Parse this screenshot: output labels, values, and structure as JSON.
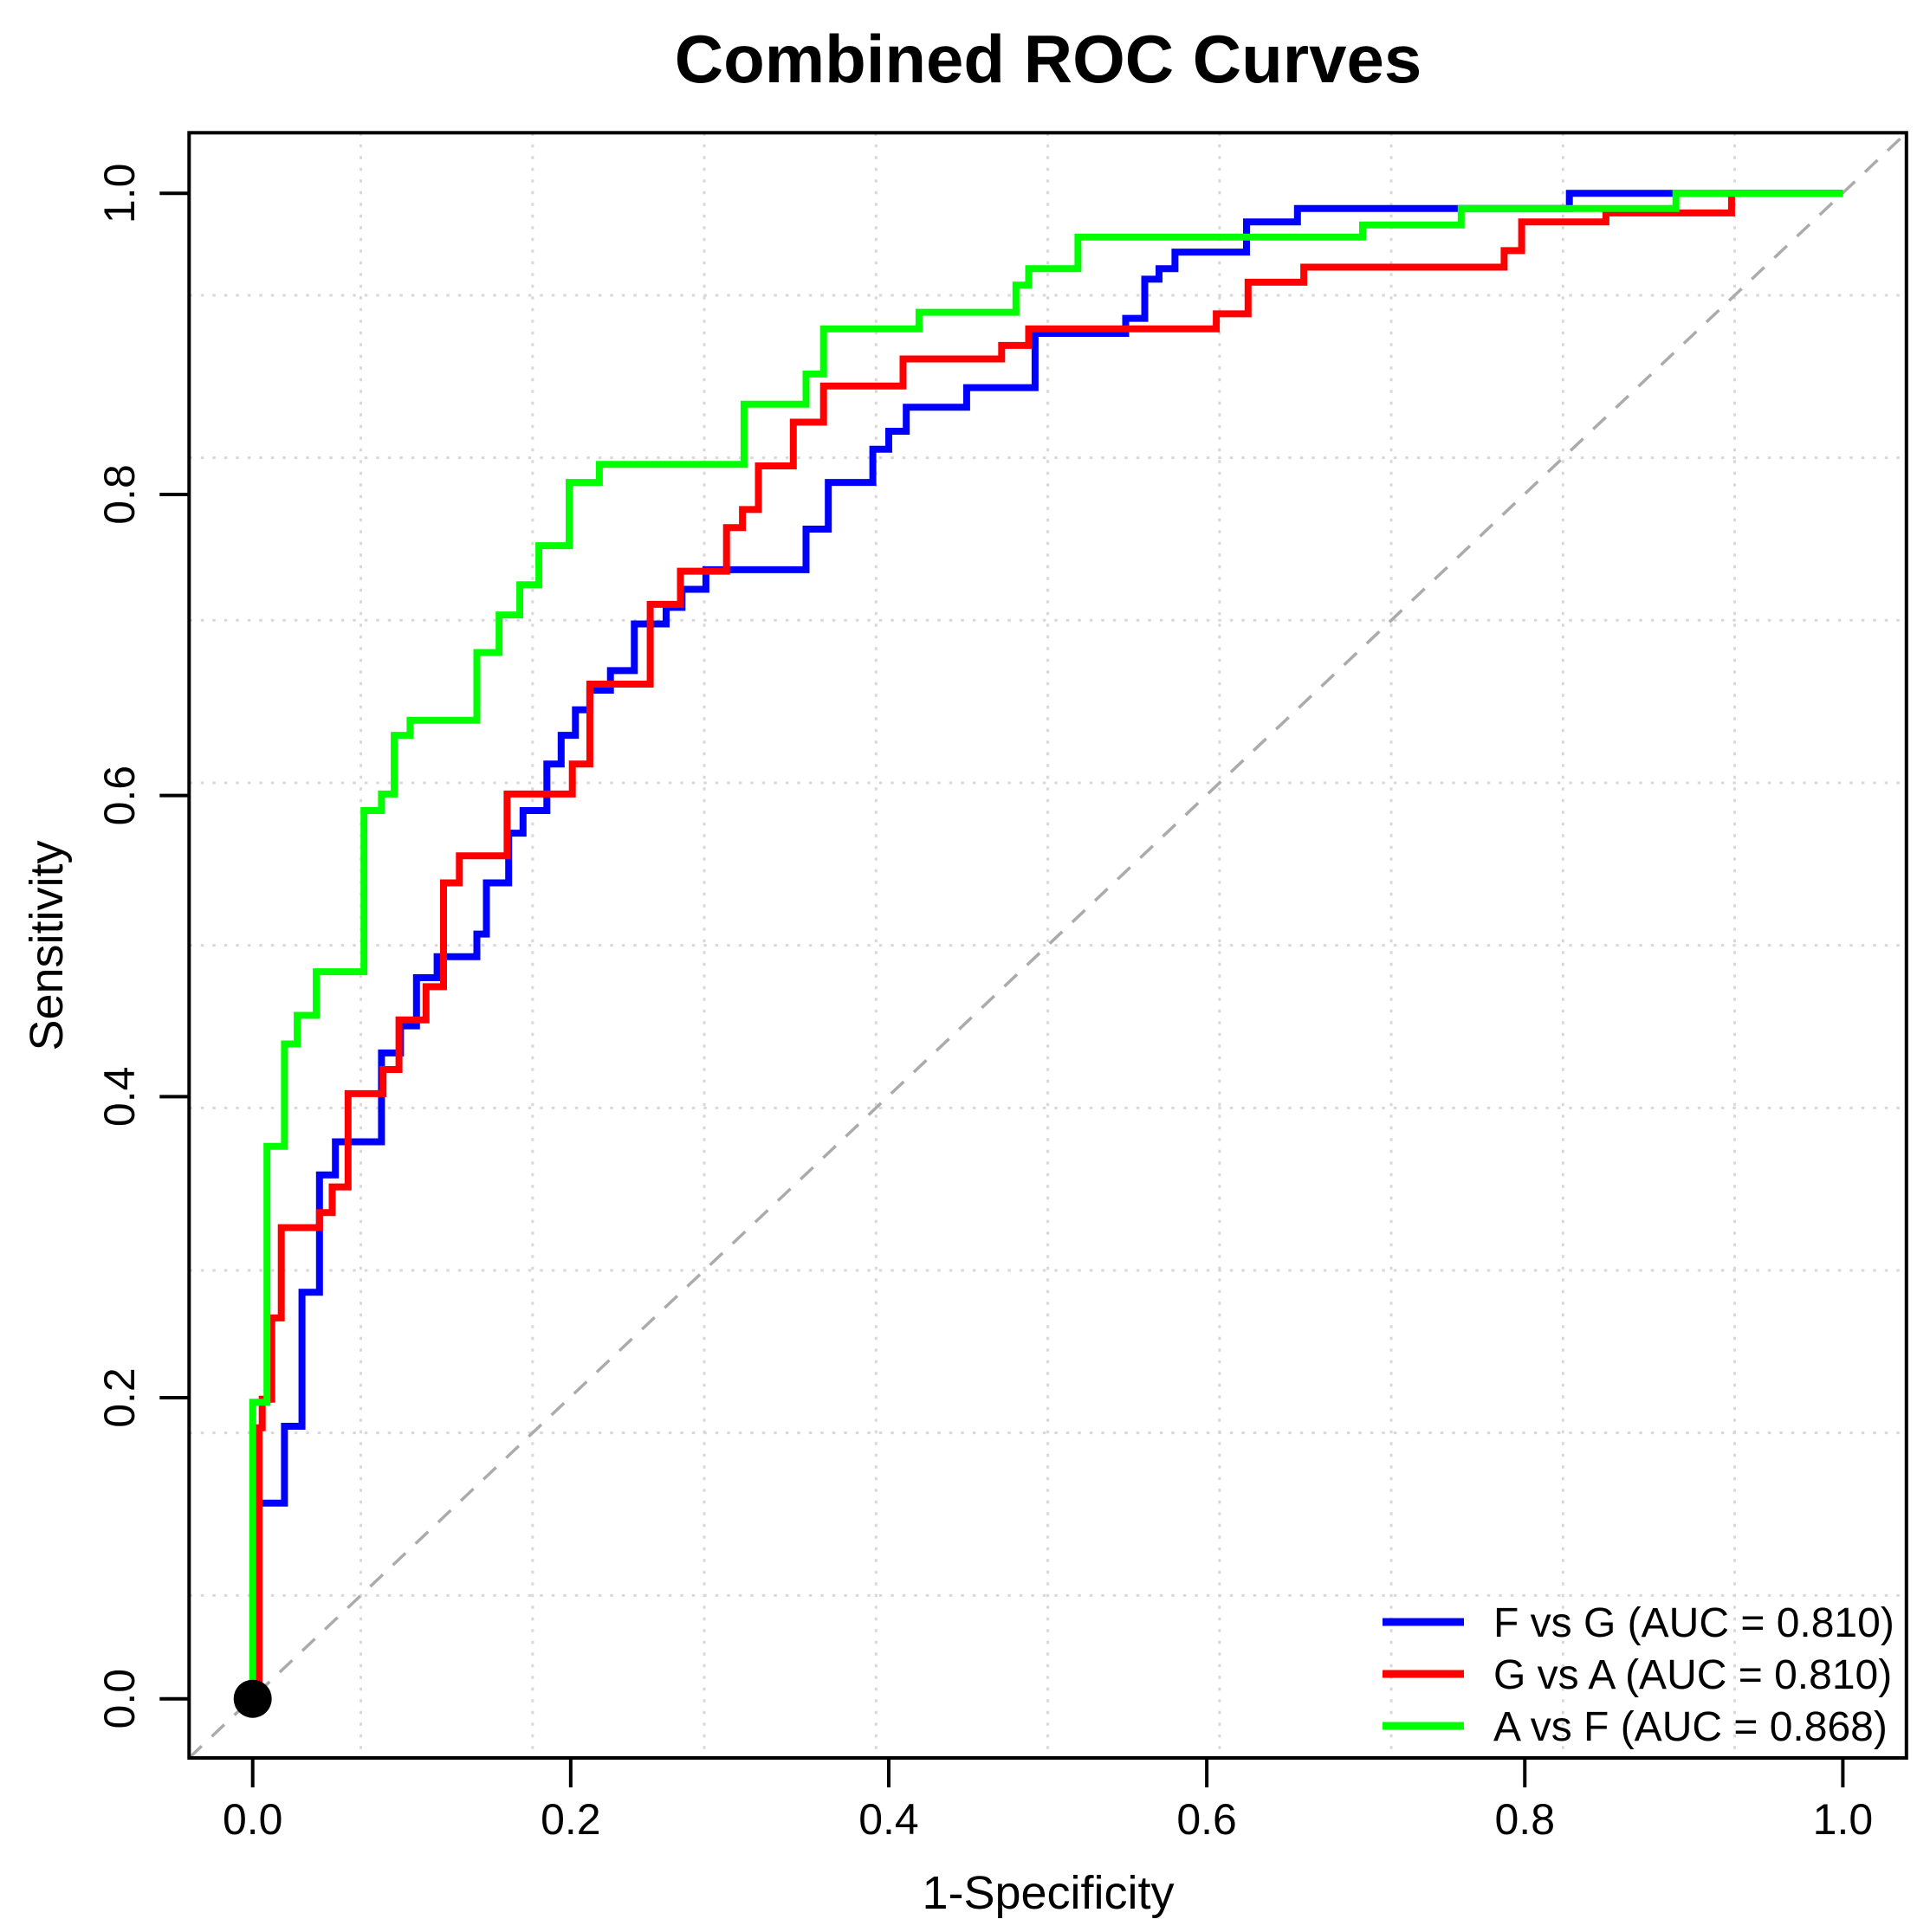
{
  "page": {
    "background": "#ffffff"
  },
  "chart_data": {
    "type": "line",
    "subtype": "roc-step-curves",
    "title": "Combined ROC Curves",
    "xlabel": "1-Specificity",
    "ylabel": "Sensitivity",
    "xlim": [
      0,
      1
    ],
    "ylim": [
      0,
      1
    ],
    "axis_pad_fraction": 0.04,
    "x_tick_values": [
      0,
      0.2,
      0.4,
      0.6,
      0.8,
      1
    ],
    "x_tick_labels": [
      "0.0",
      "0.2",
      "0.4",
      "0.6",
      "0.8",
      "1.0"
    ],
    "y_tick_values": [
      0,
      0.2,
      0.4,
      0.6,
      0.8,
      1
    ],
    "y_tick_labels": [
      "0.0",
      "0.2",
      "0.4",
      "0.6",
      "0.8",
      "1.0"
    ],
    "grid": {
      "enabled": true,
      "divisions": 10,
      "style": "dotted",
      "color": "#d8d8d8"
    },
    "reference_line": {
      "type": "diagonal",
      "style": "dashed",
      "color": "#ababab"
    },
    "origin_marker": {
      "x": 0,
      "y": 0,
      "color": "#000000"
    },
    "legend": {
      "position": "bottom-right",
      "entries": [
        {
          "label": "F vs G (AUC = 0.810)",
          "color": "#0000ff"
        },
        {
          "label": "G vs A (AUC = 0.810)",
          "color": "#ff0000"
        },
        {
          "label": "A vs F (AUC = 0.868)",
          "color": "#00ff00"
        }
      ]
    },
    "series": [
      {
        "name": "F vs G",
        "auc": 0.81,
        "color": "#0000ff",
        "points": [
          [
            0,
            0
          ],
          [
            0.002,
            0
          ],
          [
            0.002,
            0.13
          ],
          [
            0.02,
            0.13
          ],
          [
            0.02,
            0.181
          ],
          [
            0.031,
            0.181
          ],
          [
            0.031,
            0.27
          ],
          [
            0.042,
            0.27
          ],
          [
            0.042,
            0.348
          ],
          [
            0.052,
            0.348
          ],
          [
            0.052,
            0.37
          ],
          [
            0.081,
            0.37
          ],
          [
            0.081,
            0.429
          ],
          [
            0.093,
            0.429
          ],
          [
            0.093,
            0.447
          ],
          [
            0.103,
            0.447
          ],
          [
            0.103,
            0.479
          ],
          [
            0.116,
            0.479
          ],
          [
            0.116,
            0.493
          ],
          [
            0.141,
            0.493
          ],
          [
            0.141,
            0.508
          ],
          [
            0.147,
            0.508
          ],
          [
            0.147,
            0.542
          ],
          [
            0.161,
            0.542
          ],
          [
            0.161,
            0.575
          ],
          [
            0.17,
            0.575
          ],
          [
            0.17,
            0.59
          ],
          [
            0.185,
            0.59
          ],
          [
            0.185,
            0.621
          ],
          [
            0.194,
            0.621
          ],
          [
            0.194,
            0.64
          ],
          [
            0.203,
            0.64
          ],
          [
            0.203,
            0.657
          ],
          [
            0.212,
            0.657
          ],
          [
            0.212,
            0.67
          ],
          [
            0.225,
            0.67
          ],
          [
            0.225,
            0.683
          ],
          [
            0.24,
            0.683
          ],
          [
            0.24,
            0.714
          ],
          [
            0.26,
            0.714
          ],
          [
            0.26,
            0.725
          ],
          [
            0.27,
            0.725
          ],
          [
            0.27,
            0.737
          ],
          [
            0.285,
            0.737
          ],
          [
            0.285,
            0.75
          ],
          [
            0.348,
            0.75
          ],
          [
            0.348,
            0.777
          ],
          [
            0.362,
            0.777
          ],
          [
            0.362,
            0.808
          ],
          [
            0.39,
            0.808
          ],
          [
            0.39,
            0.83
          ],
          [
            0.4,
            0.83
          ],
          [
            0.4,
            0.842
          ],
          [
            0.411,
            0.842
          ],
          [
            0.411,
            0.858
          ],
          [
            0.449,
            0.858
          ],
          [
            0.449,
            0.871
          ],
          [
            0.492,
            0.871
          ],
          [
            0.492,
            0.907
          ],
          [
            0.549,
            0.907
          ],
          [
            0.549,
            0.917
          ],
          [
            0.561,
            0.917
          ],
          [
            0.561,
            0.943
          ],
          [
            0.57,
            0.943
          ],
          [
            0.57,
            0.95
          ],
          [
            0.58,
            0.95
          ],
          [
            0.58,
            0.961
          ],
          [
            0.625,
            0.961
          ],
          [
            0.625,
            0.981
          ],
          [
            0.657,
            0.981
          ],
          [
            0.657,
            0.99
          ],
          [
            0.828,
            0.99
          ],
          [
            0.828,
            1
          ],
          [
            1,
            1
          ]
        ]
      },
      {
        "name": "G vs A",
        "auc": 0.81,
        "color": "#ff0000",
        "points": [
          [
            0,
            0
          ],
          [
            0.004,
            0
          ],
          [
            0.004,
            0.18
          ],
          [
            0.006,
            0.18
          ],
          [
            0.006,
            0.199
          ],
          [
            0.012,
            0.199
          ],
          [
            0.012,
            0.253
          ],
          [
            0.018,
            0.253
          ],
          [
            0.018,
            0.313
          ],
          [
            0.042,
            0.313
          ],
          [
            0.042,
            0.323
          ],
          [
            0.05,
            0.323
          ],
          [
            0.05,
            0.34
          ],
          [
            0.06,
            0.34
          ],
          [
            0.06,
            0.402
          ],
          [
            0.082,
            0.402
          ],
          [
            0.082,
            0.418
          ],
          [
            0.092,
            0.418
          ],
          [
            0.092,
            0.451
          ],
          [
            0.109,
            0.451
          ],
          [
            0.109,
            0.473
          ],
          [
            0.12,
            0.473
          ],
          [
            0.12,
            0.542
          ],
          [
            0.13,
            0.542
          ],
          [
            0.13,
            0.56
          ],
          [
            0.16,
            0.56
          ],
          [
            0.16,
            0.601
          ],
          [
            0.201,
            0.601
          ],
          [
            0.201,
            0.621
          ],
          [
            0.212,
            0.621
          ],
          [
            0.212,
            0.674
          ],
          [
            0.25,
            0.674
          ],
          [
            0.25,
            0.727
          ],
          [
            0.269,
            0.727
          ],
          [
            0.269,
            0.749
          ],
          [
            0.298,
            0.749
          ],
          [
            0.298,
            0.778
          ],
          [
            0.308,
            0.778
          ],
          [
            0.308,
            0.79
          ],
          [
            0.318,
            0.79
          ],
          [
            0.318,
            0.819
          ],
          [
            0.34,
            0.819
          ],
          [
            0.34,
            0.848
          ],
          [
            0.359,
            0.848
          ],
          [
            0.359,
            0.872
          ],
          [
            0.409,
            0.872
          ],
          [
            0.409,
            0.89
          ],
          [
            0.471,
            0.89
          ],
          [
            0.471,
            0.899
          ],
          [
            0.488,
            0.899
          ],
          [
            0.488,
            0.91
          ],
          [
            0.606,
            0.91
          ],
          [
            0.606,
            0.92
          ],
          [
            0.626,
            0.92
          ],
          [
            0.626,
            0.941
          ],
          [
            0.661,
            0.941
          ],
          [
            0.661,
            0.951
          ],
          [
            0.787,
            0.951
          ],
          [
            0.787,
            0.962
          ],
          [
            0.798,
            0.962
          ],
          [
            0.798,
            0.981
          ],
          [
            0.851,
            0.981
          ],
          [
            0.851,
            0.987
          ],
          [
            0.93,
            0.987
          ],
          [
            0.93,
            1
          ],
          [
            1,
            1
          ]
        ]
      },
      {
        "name": "A vs F",
        "auc": 0.868,
        "color": "#00ff00",
        "points": [
          [
            0,
            0
          ],
          [
            0,
            0.197
          ],
          [
            0.009,
            0.197
          ],
          [
            0.009,
            0.367
          ],
          [
            0.02,
            0.367
          ],
          [
            0.02,
            0.435
          ],
          [
            0.028,
            0.435
          ],
          [
            0.028,
            0.454
          ],
          [
            0.04,
            0.454
          ],
          [
            0.04,
            0.483
          ],
          [
            0.07,
            0.483
          ],
          [
            0.07,
            0.59
          ],
          [
            0.081,
            0.59
          ],
          [
            0.081,
            0.601
          ],
          [
            0.089,
            0.601
          ],
          [
            0.089,
            0.64
          ],
          [
            0.099,
            0.64
          ],
          [
            0.099,
            0.65
          ],
          [
            0.141,
            0.65
          ],
          [
            0.141,
            0.695
          ],
          [
            0.155,
            0.695
          ],
          [
            0.155,
            0.72
          ],
          [
            0.168,
            0.72
          ],
          [
            0.168,
            0.74
          ],
          [
            0.18,
            0.74
          ],
          [
            0.18,
            0.766
          ],
          [
            0.199,
            0.766
          ],
          [
            0.199,
            0.808
          ],
          [
            0.218,
            0.808
          ],
          [
            0.218,
            0.82
          ],
          [
            0.309,
            0.82
          ],
          [
            0.309,
            0.86
          ],
          [
            0.348,
            0.86
          ],
          [
            0.348,
            0.88
          ],
          [
            0.359,
            0.88
          ],
          [
            0.359,
            0.91
          ],
          [
            0.419,
            0.91
          ],
          [
            0.419,
            0.921
          ],
          [
            0.48,
            0.921
          ],
          [
            0.48,
            0.939
          ],
          [
            0.488,
            0.939
          ],
          [
            0.488,
            0.95
          ],
          [
            0.519,
            0.95
          ],
          [
            0.519,
            0.971
          ],
          [
            0.698,
            0.971
          ],
          [
            0.698,
            0.979
          ],
          [
            0.76,
            0.979
          ],
          [
            0.76,
            0.99
          ],
          [
            0.895,
            0.99
          ],
          [
            0.895,
            1
          ],
          [
            1,
            1
          ]
        ]
      }
    ]
  }
}
